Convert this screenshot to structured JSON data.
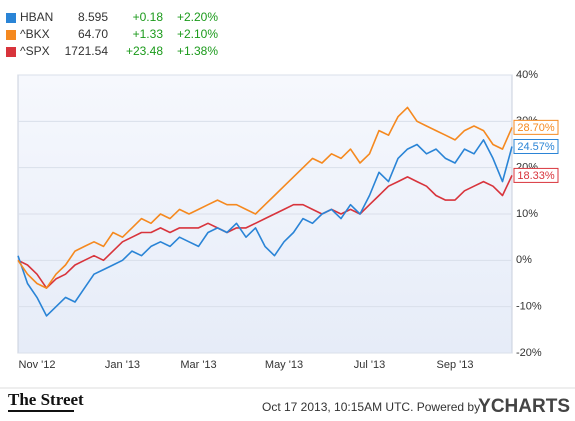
{
  "chart_data": {
    "type": "line",
    "categories": [
      null,
      null,
      "Nov '12",
      null,
      null,
      null,
      null,
      null,
      null,
      null,
      null,
      "Jan '13",
      null,
      null,
      null,
      null,
      null,
      null,
      null,
      "Mar '13",
      null,
      null,
      null,
      null,
      null,
      null,
      null,
      null,
      "May '13",
      null,
      null,
      null,
      null,
      null,
      null,
      null,
      null,
      "Jul '13",
      null,
      null,
      null,
      null,
      null,
      null,
      null,
      null,
      "Sep '13",
      null,
      null,
      null,
      null,
      null,
      null
    ],
    "series": [
      {
        "name": "HBAN",
        "price": "8.595",
        "change": "+0.18",
        "change_pct": "+2.20%",
        "end_label": "24.57%",
        "color": "#2a84d6",
        "values": [
          1,
          -5,
          -8,
          -12,
          -10,
          -8,
          -9,
          -6,
          -3,
          -2,
          -1,
          0,
          2,
          1,
          3,
          4,
          3,
          5,
          4,
          3,
          6,
          7,
          6,
          8,
          5,
          7,
          3,
          1,
          4,
          6,
          9,
          8,
          10,
          11,
          9,
          12,
          10,
          14,
          19,
          17,
          22,
          24,
          25,
          23,
          24,
          22,
          21,
          24,
          23,
          26,
          22,
          17,
          24.57
        ]
      },
      {
        "name": "^BKX",
        "price": "64.70",
        "change": "+1.33",
        "change_pct": "+2.10%",
        "end_label": "28.70%",
        "color": "#f5891f",
        "values": [
          0,
          -3,
          -5,
          -6,
          -3,
          -1,
          2,
          3,
          4,
          3,
          6,
          5,
          7,
          9,
          8,
          10,
          9,
          11,
          10,
          11,
          12,
          13,
          12,
          12,
          11,
          10,
          12,
          14,
          16,
          18,
          20,
          22,
          21,
          23,
          22,
          24,
          21,
          23,
          28,
          27,
          31,
          33,
          30,
          29,
          28,
          27,
          26,
          28,
          29,
          28,
          25,
          24,
          28.7
        ]
      },
      {
        "name": "^SPX",
        "price": "1721.54",
        "change": "+23.48",
        "change_pct": "+1.38%",
        "end_label": "18.33%",
        "color": "#d8343c",
        "values": [
          0,
          -1,
          -3,
          -6,
          -4,
          -3,
          -1,
          0,
          1,
          0,
          2,
          4,
          5,
          6,
          6,
          7,
          6,
          7,
          7,
          7,
          8,
          7,
          6,
          7,
          7,
          8,
          9,
          10,
          11,
          12,
          12,
          11,
          10,
          11,
          10,
          11,
          10,
          12,
          14,
          16,
          17,
          18,
          17,
          16,
          14,
          13,
          13,
          15,
          16,
          17,
          16,
          14,
          18.33
        ]
      }
    ],
    "ylim": [
      -20,
      40
    ],
    "yticks": [
      {
        "value": -20,
        "label": "-20%"
      },
      {
        "value": -10,
        "label": "-10%"
      },
      {
        "value": 0,
        "label": "0%"
      },
      {
        "value": 10,
        "label": "10%"
      },
      {
        "value": 20,
        "label": "20%"
      },
      {
        "value": 30,
        "label": "30%"
      },
      {
        "value": 40,
        "label": "40%"
      }
    ],
    "grid": true
  },
  "footer": {
    "logo": "The Street",
    "timestamp": "Oct 17 2013, 10:15AM UTC. Powered by",
    "brand": "YCHARTS"
  }
}
